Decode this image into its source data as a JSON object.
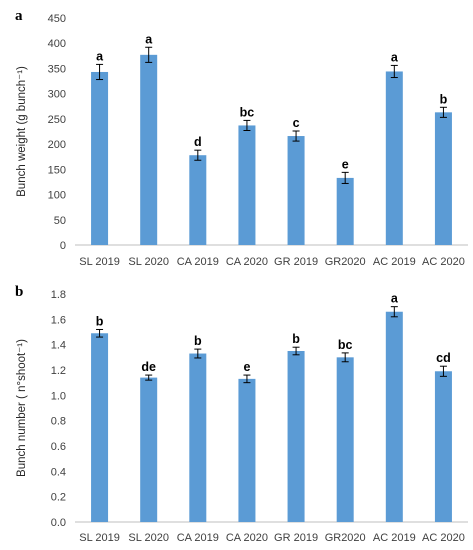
{
  "chart_data": [
    {
      "type": "bar",
      "panel_label": "a",
      "ylabel": "Bunch weight  (g bunch⁻¹)",
      "categories": [
        "SL 2019",
        "SL 2020",
        "CA 2019",
        "CA 2020",
        "GR 2019",
        "GR2020",
        "AC 2019",
        "AC 2020"
      ],
      "values": [
        343,
        377,
        178,
        237,
        216,
        133,
        344,
        263
      ],
      "errors": [
        15,
        15,
        10,
        10,
        10,
        11,
        12,
        10
      ],
      "significance": [
        "a",
        "a",
        "d",
        "bc",
        "c",
        "e",
        "a",
        "b"
      ],
      "ylim": [
        0,
        450
      ],
      "yticks": [
        "0",
        "50",
        "100",
        "150",
        "200",
        "250",
        "300",
        "350",
        "400",
        "450"
      ],
      "grid": false,
      "bar_color": "#5B9BD5"
    },
    {
      "type": "bar",
      "panel_label": "b",
      "ylabel": "Bunch number ( n°shoot⁻¹)",
      "categories": [
        "SL 2019",
        "SL 2020",
        "CA 2019",
        "CA 2020",
        "GR 2019",
        "GR2020",
        "AC 2019",
        "AC 2020"
      ],
      "values": [
        1.49,
        1.14,
        1.33,
        1.13,
        1.35,
        1.3,
        1.66,
        1.19
      ],
      "errors": [
        0.03,
        0.02,
        0.035,
        0.03,
        0.03,
        0.035,
        0.04,
        0.04
      ],
      "significance": [
        "b",
        "de",
        "b",
        "e",
        "b",
        "bc",
        "a",
        "cd"
      ],
      "ylim": [
        0,
        1.8
      ],
      "yticks": [
        "0.0",
        "0.2",
        "0.4",
        "0.6",
        "0.8",
        "1.0",
        "1.2",
        "1.4",
        "1.6",
        "1.8"
      ],
      "grid": false,
      "bar_color": "#5B9BD5"
    }
  ]
}
